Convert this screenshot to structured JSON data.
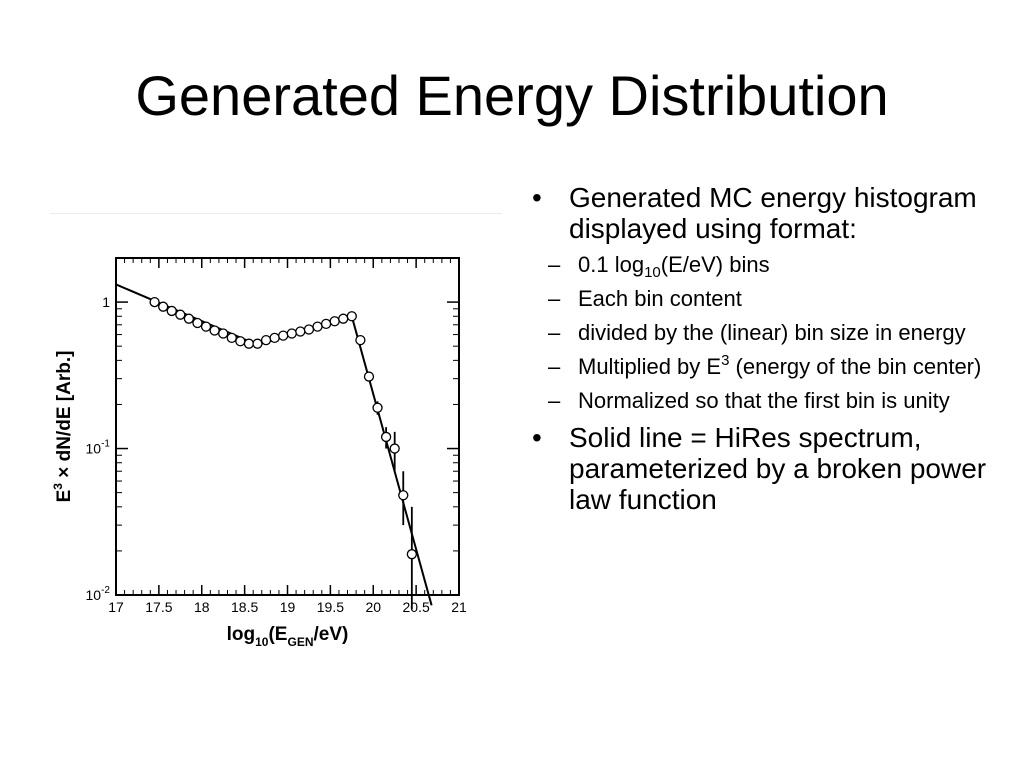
{
  "slide": {
    "title": "Generated Energy Distribution"
  },
  "bullets": {
    "b1": {
      "dot": "•",
      "text": "Generated MC energy histogram displayed using format:"
    },
    "subs": [
      {
        "dash": "–",
        "pre": "0.1 log",
        "sub": "10",
        "post": "(E/eV) bins"
      },
      {
        "dash": "–",
        "text": "Each bin content"
      },
      {
        "dash": "–",
        "text": "divided by the (linear) bin size in energy"
      },
      {
        "dash": "–",
        "pre": "Multiplied by E",
        "sup": "3",
        "post": " (energy of the bin center)"
      },
      {
        "dash": "–",
        "text": "Normalized so that the first bin is unity"
      }
    ],
    "b2": {
      "dot": "•",
      "text": "Solid line = HiRes spectrum, parameterized by a broken power law function"
    }
  },
  "chart_data": {
    "type": "scatter",
    "xlim": [
      17,
      21
    ],
    "ylim": [
      0.01,
      2
    ],
    "yscale": "log",
    "x_ticks": [
      "17",
      "17.5",
      "18",
      "18.5",
      "19",
      "19.5",
      "20",
      "20.5",
      "21"
    ],
    "y_ticks": [
      {
        "value": 1,
        "base": "1",
        "exp": ""
      },
      {
        "value": 0.1,
        "base": "10",
        "exp": "-1"
      },
      {
        "value": 0.01,
        "base": "10",
        "exp": "-2"
      }
    ],
    "xlabel": {
      "pre": "log",
      "sub1": "10",
      "mid": "(E",
      "sub2": "GEN",
      "post": "/eV)"
    },
    "ylabel": {
      "pre": "E",
      "sup": "3",
      "post": " × dN/dE [Arb.]"
    },
    "points": [
      {
        "x": 17.45,
        "y": 1.0
      },
      {
        "x": 17.55,
        "y": 0.93
      },
      {
        "x": 17.65,
        "y": 0.87
      },
      {
        "x": 17.75,
        "y": 0.82
      },
      {
        "x": 17.85,
        "y": 0.77
      },
      {
        "x": 17.95,
        "y": 0.72
      },
      {
        "x": 18.05,
        "y": 0.68
      },
      {
        "x": 18.15,
        "y": 0.64
      },
      {
        "x": 18.25,
        "y": 0.61
      },
      {
        "x": 18.35,
        "y": 0.57
      },
      {
        "x": 18.45,
        "y": 0.54
      },
      {
        "x": 18.55,
        "y": 0.52
      },
      {
        "x": 18.65,
        "y": 0.52
      },
      {
        "x": 18.75,
        "y": 0.55
      },
      {
        "x": 18.85,
        "y": 0.57
      },
      {
        "x": 18.95,
        "y": 0.59
      },
      {
        "x": 19.05,
        "y": 0.61
      },
      {
        "x": 19.15,
        "y": 0.63
      },
      {
        "x": 19.25,
        "y": 0.65
      },
      {
        "x": 19.35,
        "y": 0.68
      },
      {
        "x": 19.45,
        "y": 0.71
      },
      {
        "x": 19.55,
        "y": 0.74
      },
      {
        "x": 19.65,
        "y": 0.77
      },
      {
        "x": 19.75,
        "y": 0.8
      },
      {
        "x": 19.85,
        "y": 0.55
      },
      {
        "x": 19.95,
        "y": 0.31
      },
      {
        "x": 20.05,
        "y": 0.19,
        "err": [
          0.17,
          0.21
        ]
      },
      {
        "x": 20.15,
        "y": 0.12,
        "err": [
          0.1,
          0.14
        ]
      },
      {
        "x": 20.25,
        "y": 0.1,
        "err": [
          0.07,
          0.13
        ]
      },
      {
        "x": 20.35,
        "y": 0.048,
        "err": [
          0.03,
          0.07
        ]
      },
      {
        "x": 20.45,
        "y": 0.019,
        "err": [
          0.008,
          0.04
        ]
      }
    ],
    "fit_line": [
      {
        "x": 17,
        "y": 1.32
      },
      {
        "x": 18.65,
        "y": 0.51
      },
      {
        "x": 19.75,
        "y": 0.8
      },
      {
        "x": 20.68,
        "y": 0.0085
      }
    ]
  }
}
